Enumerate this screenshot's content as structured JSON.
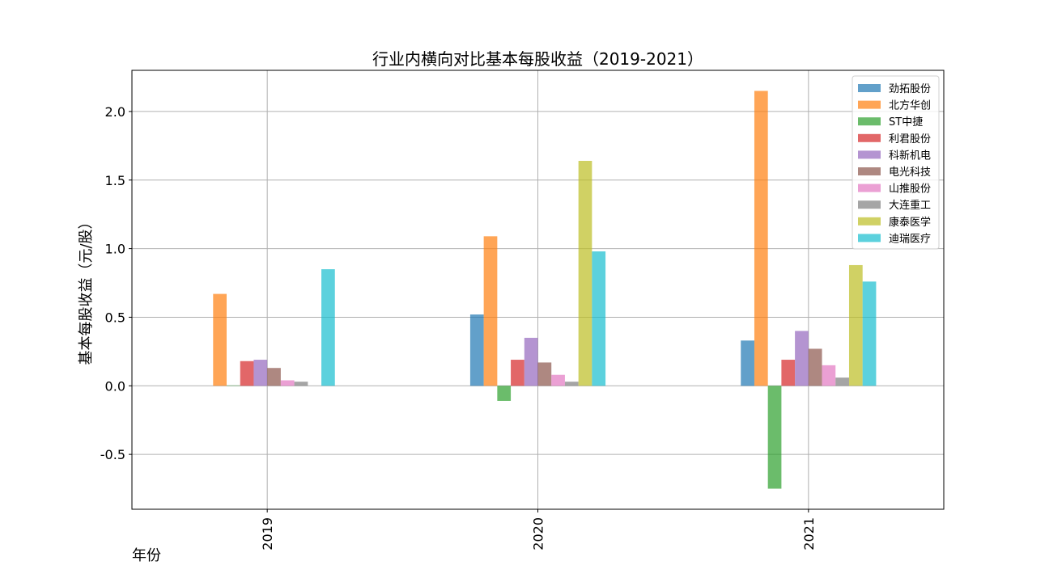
{
  "chart_data": {
    "type": "bar",
    "title": "行业内横向对比基本每股收益（2019-2021）",
    "xlabel": "年份",
    "ylabel": "基本每股收益（元/股）",
    "categories": [
      "2019",
      "2020",
      "2021"
    ],
    "ylim": [
      -0.9,
      2.3
    ],
    "yticks": [
      -0.5,
      0.0,
      0.5,
      1.0,
      1.5,
      2.0
    ],
    "ytick_labels": [
      "-0.5",
      "0.0",
      "0.5",
      "1.0",
      "1.5",
      "2.0"
    ],
    "grid": true,
    "legend_position": "top-right",
    "series": [
      {
        "name": "劲拓股份",
        "color": "#1f77b4",
        "values": [
          null,
          0.52,
          0.33
        ]
      },
      {
        "name": "北方华创",
        "color": "#ff7f0e",
        "values": [
          0.67,
          1.09,
          2.15
        ]
      },
      {
        "name": "ST中捷",
        "color": "#2ca02c",
        "values": [
          0.003,
          -0.11,
          -0.75
        ]
      },
      {
        "name": "利君股份",
        "color": "#d62728",
        "values": [
          0.18,
          0.19,
          0.19
        ]
      },
      {
        "name": "科新机电",
        "color": "#9467bd",
        "values": [
          0.19,
          0.35,
          0.4
        ]
      },
      {
        "name": "电光科技",
        "color": "#8c564b",
        "values": [
          0.13,
          0.17,
          0.27
        ]
      },
      {
        "name": "山推股份",
        "color": "#e377c2",
        "values": [
          0.04,
          0.08,
          0.15
        ]
      },
      {
        "name": "大连重工",
        "color": "#7f7f7f",
        "values": [
          0.03,
          0.03,
          0.06
        ]
      },
      {
        "name": "康泰医学",
        "color": "#bcbd22",
        "values": [
          null,
          1.64,
          0.88
        ]
      },
      {
        "name": "迪瑞医疗",
        "color": "#17becf",
        "values": [
          0.85,
          0.98,
          0.76
        ]
      }
    ]
  }
}
